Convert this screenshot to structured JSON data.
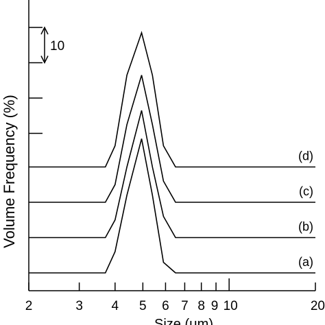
{
  "chart_data": {
    "type": "line",
    "xscale": "log",
    "xlim": [
      2,
      20
    ],
    "ylim": [
      0,
      70
    ],
    "xlabel": "Size (μm)",
    "ylabel": "Volume Frequency (%)",
    "x_ticks": [
      {
        "value": 2,
        "label": "2"
      },
      {
        "value": 3,
        "label": "3"
      },
      {
        "value": 4,
        "label": "4"
      },
      {
        "value": 5,
        "label": "5"
      },
      {
        "value": 6,
        "label": "6"
      },
      {
        "value": 7,
        "label": "7"
      },
      {
        "value": 8,
        "label": "8"
      },
      {
        "value": 9,
        "label": "9"
      },
      {
        "value": 10,
        "label": "10"
      },
      {
        "value": 20,
        "label": "20"
      }
    ],
    "scale_bar": {
      "label": "10",
      "value": 10
    },
    "series": [
      {
        "name": "(a)",
        "offset": 0,
        "x": [
          2,
          3.7,
          4.0,
          4.4,
          4.95,
          5.4,
          5.9,
          6.5,
          20
        ],
        "y": [
          0,
          0,
          6,
          22,
          38,
          22,
          3,
          0,
          0
        ]
      },
      {
        "name": "(b)",
        "offset": 10,
        "x": [
          2,
          3.7,
          4.0,
          4.4,
          4.95,
          5.4,
          5.9,
          6.5,
          20
        ],
        "y": [
          0,
          0,
          5,
          20,
          36,
          20,
          6,
          0,
          0
        ]
      },
      {
        "name": "(c)",
        "offset": 20,
        "x": [
          2,
          3.7,
          4.0,
          4.4,
          4.95,
          5.4,
          5.9,
          6.5,
          20
        ],
        "y": [
          0,
          0,
          5,
          22,
          36,
          22,
          6,
          0,
          0
        ]
      },
      {
        "name": "(d)",
        "offset": 30,
        "x": [
          2,
          3.7,
          4.0,
          4.4,
          4.95,
          5.4,
          5.9,
          6.5,
          20
        ],
        "y": [
          0,
          0,
          6,
          26,
          38,
          26,
          6,
          0,
          0
        ]
      }
    ]
  }
}
